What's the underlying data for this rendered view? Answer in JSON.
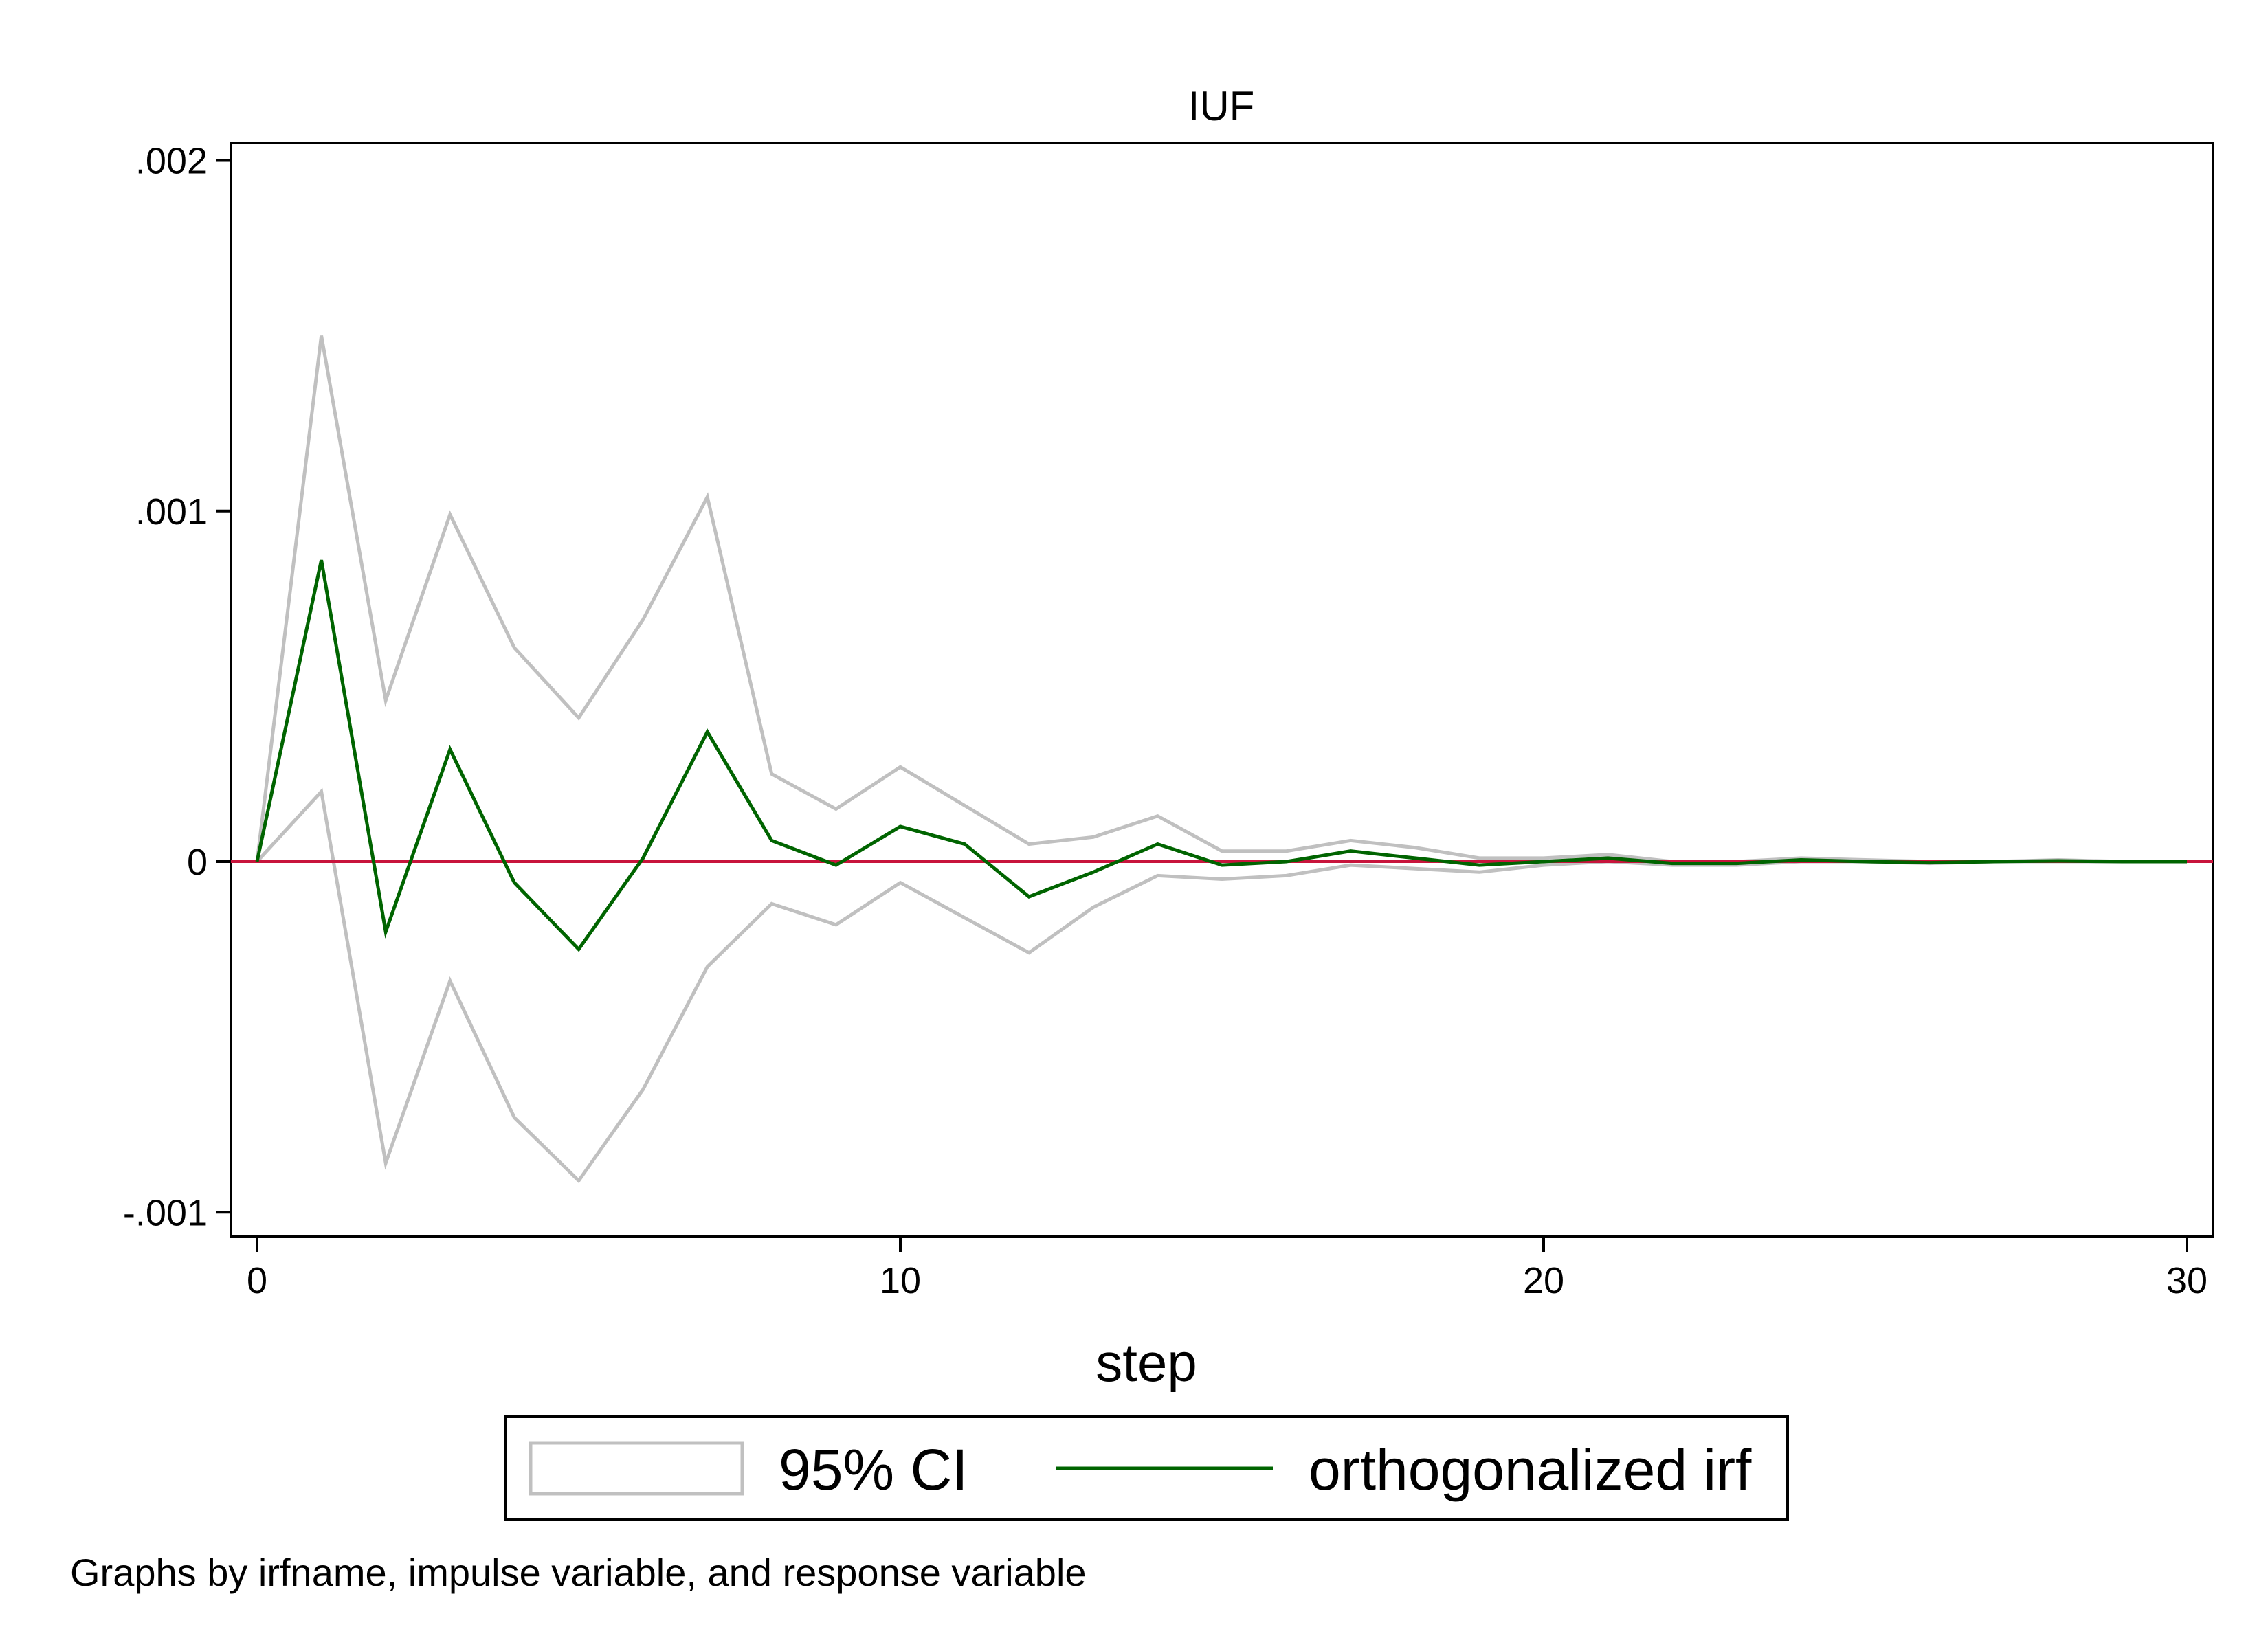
{
  "chart_data": {
    "type": "line",
    "title": "IUF",
    "xlabel": "step",
    "ylabel": "",
    "xlim": [
      0,
      30
    ],
    "ylim": [
      -0.00107,
      0.00205
    ],
    "x_ticks": [
      0,
      10,
      20,
      30
    ],
    "x_tick_labels": [
      "0",
      "10",
      "20",
      "30"
    ],
    "y_ticks": [
      -0.001,
      0,
      0.001,
      0.002
    ],
    "y_tick_labels": [
      "-.001",
      "0",
      ".001",
      ".002"
    ],
    "grid": false,
    "legend_position": "bottom",
    "x": [
      0,
      1,
      2,
      3,
      4,
      5,
      6,
      7,
      8,
      9,
      10,
      11,
      12,
      13,
      14,
      15,
      16,
      17,
      18,
      19,
      20,
      21,
      22,
      23,
      24,
      25,
      26,
      27,
      28,
      29,
      30
    ],
    "series": [
      {
        "name": "orthogonalized irf",
        "role": "estimate",
        "values": [
          0,
          0.00086,
          -0.0002,
          0.00032,
          -6e-05,
          -0.00025,
          1e-05,
          0.00037,
          6e-05,
          -1e-05,
          0.0001,
          5e-05,
          -0.0001,
          -3e-05,
          5e-05,
          -1e-05,
          0,
          3e-05,
          1e-05,
          -1e-05,
          0,
          1e-05,
          -5e-06,
          -5e-06,
          5e-06,
          0,
          -3e-06,
          0,
          2e-06,
          0,
          0
        ]
      },
      {
        "name": "95% CI",
        "role": "ci_upper",
        "values": [
          0,
          0.0015,
          0.00046,
          0.00099,
          0.00061,
          0.00041,
          0.00069,
          0.00104,
          0.00025,
          0.00015,
          0.00027,
          0.00016,
          5e-05,
          7e-05,
          0.00013,
          3e-05,
          3e-05,
          6e-05,
          4e-05,
          1e-05,
          1e-05,
          2e-05,
          0,
          0,
          1e-05,
          5e-06,
          0,
          0,
          5e-06,
          0,
          0
        ]
      },
      {
        "name": "95% CI",
        "role": "ci_lower",
        "values": [
          0,
          0.0002,
          -0.00086,
          -0.00034,
          -0.00073,
          -0.00091,
          -0.00065,
          -0.0003,
          -0.00012,
          -0.00018,
          -6e-05,
          -0.00016,
          -0.00026,
          -0.00013,
          -4e-05,
          -5e-05,
          -4e-05,
          -1e-05,
          -2e-05,
          -3e-05,
          -1e-05,
          0,
          -1e-05,
          -1e-05,
          0,
          0,
          -5e-06,
          0,
          0,
          0,
          0
        ]
      }
    ],
    "reference_line": {
      "y": 0
    },
    "legend": [
      {
        "label": "95% CI",
        "style": "box"
      },
      {
        "label": "orthogonalized irf",
        "style": "line"
      }
    ],
    "note": "Graphs by irfname, impulse variable, and response variable"
  },
  "colors": {
    "irf": "#006400",
    "ci": "#c0c0c0",
    "zero_line": "#c8143c",
    "axis": "#000000"
  }
}
